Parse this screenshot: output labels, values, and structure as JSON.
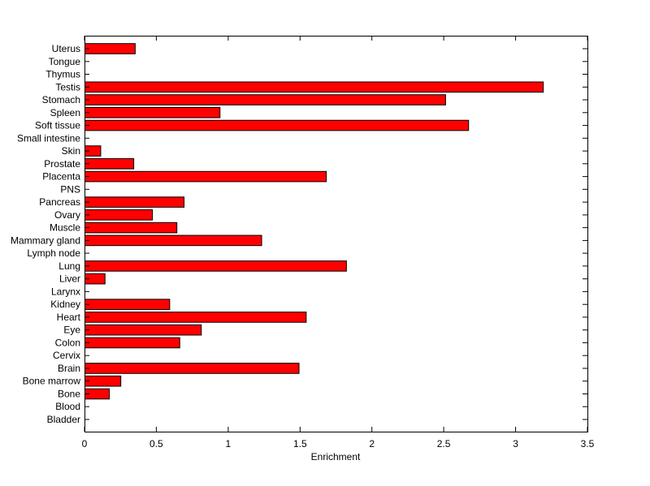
{
  "chart_data": {
    "type": "bar",
    "orientation": "horizontal",
    "xlabel": "Enrichment",
    "ylabel": "",
    "title": "",
    "xlim": [
      0,
      3.5
    ],
    "xticks": [
      "0",
      "0.5",
      "1",
      "1.5",
      "2",
      "2.5",
      "3",
      "3.5"
    ],
    "grid": false,
    "bar_color": "#ff0000",
    "edge_color": "#000000",
    "categories": [
      "Uterus",
      "Tongue",
      "Thymus",
      "Testis",
      "Stomach",
      "Spleen",
      "Soft tissue",
      "Small intestine",
      "Skin",
      "Prostate",
      "Placenta",
      "PNS",
      "Pancreas",
      "Ovary",
      "Muscle",
      "Mammary gland",
      "Lymph node",
      "Lung",
      "Liver",
      "Larynx",
      "Kidney",
      "Heart",
      "Eye",
      "Colon",
      "Cervix",
      "Brain",
      "Bone marrow",
      "Bone",
      "Blood",
      "Bladder"
    ],
    "values": [
      0.35,
      0,
      0,
      3.19,
      2.51,
      0.94,
      2.67,
      0,
      0.11,
      0.34,
      1.68,
      0,
      0.69,
      0.47,
      0.64,
      1.23,
      0,
      1.82,
      0.14,
      0,
      0.59,
      1.54,
      0.81,
      0.66,
      0,
      1.49,
      0.25,
      0.17,
      0,
      0
    ]
  }
}
